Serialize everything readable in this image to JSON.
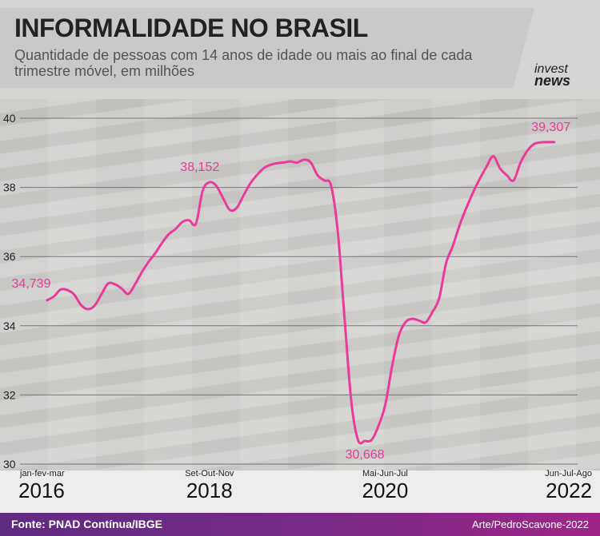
{
  "header": {
    "title": "INFORMALIDADE NO BRASIL",
    "subtitle": "Quantidade de pessoas com 14  anos de idade ou mais ao final de cada trimestre móvel, em milhões",
    "logo_top": "invest",
    "logo_bottom": "news"
  },
  "footer": {
    "source": "Fonte: PNAD Contínua/IBGE",
    "credit": "Arte/PedroScavone-2022"
  },
  "colors": {
    "line": "#ea3a9b",
    "grid": "#5a5a5a",
    "footer": "#6e2a86"
  },
  "chart_data": {
    "type": "line",
    "title": "INFORMALIDADE NO BRASIL",
    "ylim": [
      30,
      40
    ],
    "yticks": [
      "40",
      "38",
      "36",
      "34",
      "32",
      "30"
    ],
    "xlim": [
      0,
      78
    ],
    "grid": true,
    "x_labels": [
      {
        "idx": 0,
        "period": "jan-fev-mar",
        "year": "2016"
      },
      {
        "idx": 24,
        "period": "Set-Out-Nov",
        "year": "2018"
      },
      {
        "idx": 50,
        "period": "Mai-Jun-Jul",
        "year": "2020"
      },
      {
        "idx": 78,
        "period": "Jun-Jul-Ago",
        "year": "2022"
      }
    ],
    "series": [
      {
        "values": [
          34.74,
          34.85,
          35.05,
          35.03,
          34.9,
          34.6,
          34.48,
          34.58,
          34.9,
          35.22,
          35.2,
          35.08,
          34.92,
          35.2,
          35.55,
          35.85,
          36.1,
          36.4,
          36.65,
          36.8,
          37.0,
          37.05,
          36.95,
          37.9,
          38.15,
          38.05,
          37.7,
          37.35,
          37.4,
          37.75,
          38.1,
          38.35,
          38.55,
          38.65,
          38.7,
          38.72,
          38.75,
          38.72,
          38.8,
          38.72,
          38.35,
          38.2,
          38.05,
          36.7,
          34.2,
          31.8,
          30.69,
          30.67,
          30.7,
          31.1,
          31.7,
          32.8,
          33.7,
          34.1,
          34.2,
          34.15,
          34.1,
          34.4,
          34.8,
          35.8,
          36.3,
          36.9,
          37.4,
          37.85,
          38.25,
          38.6,
          38.9,
          38.55,
          38.35,
          38.2,
          38.7,
          39.05,
          39.25,
          39.3,
          39.31,
          39.31
        ]
      }
    ],
    "annotations": [
      {
        "idx": 0,
        "text": "34,739"
      },
      {
        "idx": 24,
        "text": "38,152"
      },
      {
        "idx": 47,
        "text": "30,668"
      },
      {
        "idx": 75,
        "text": "39,307"
      }
    ]
  }
}
